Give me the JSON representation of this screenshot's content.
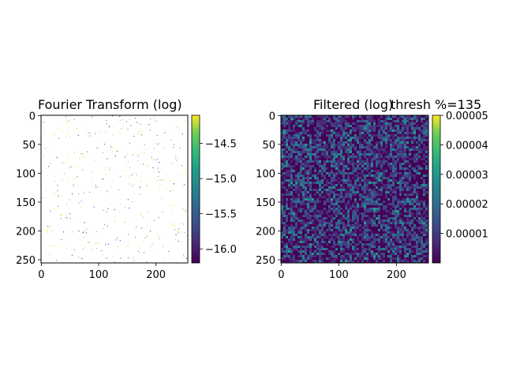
{
  "chart_data": [
    {
      "type": "heatmap",
      "title": "Fourier Transform (log)",
      "image_shape": [
        256,
        256
      ],
      "x_ticks": [
        0,
        100,
        200
      ],
      "y_ticks": [
        0,
        50,
        100,
        150,
        200,
        250
      ],
      "colormap": "viridis",
      "colorbar": {
        "min": -16.2,
        "max": -14.1,
        "ticks": [
          -14.5,
          -15.0,
          -15.5,
          -16.0
        ],
        "tick_labels": [
          "−14.5",
          "−15.0",
          "−15.5",
          "−16.0"
        ]
      },
      "content": "mostly blank (white) with sparse scattered coloured pixels"
    },
    {
      "type": "heatmap",
      "title": "Filtered (log)",
      "overlay_title": "thresh %=135",
      "image_shape": [
        256,
        256
      ],
      "x_ticks": [
        0,
        100,
        200
      ],
      "y_ticks": [
        0,
        50,
        100,
        150,
        200,
        250
      ],
      "colormap": "viridis",
      "colorbar": {
        "min": 0.0,
        "max": 5e-05,
        "ticks": [
          1e-05,
          2e-05,
          3e-05,
          4e-05,
          5e-05
        ],
        "tick_labels": [
          "0.00001",
          "0.00002",
          "0.00003",
          "0.00004",
          "0.00005"
        ]
      },
      "content": "dense random noise, predominantly dark blue/purple with scattered teal pixels"
    }
  ]
}
